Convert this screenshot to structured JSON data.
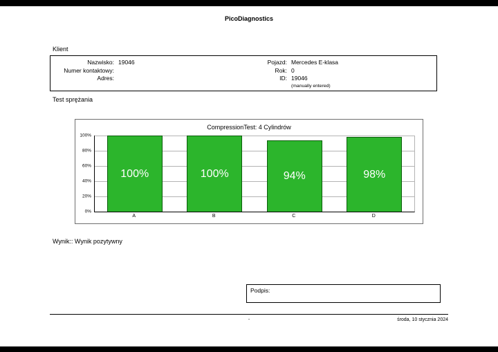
{
  "page": {
    "app_title": "PicoDiagnostics",
    "footer": {
      "center": "-",
      "date": "środa, 10 stycznia 2024"
    }
  },
  "client": {
    "section_label": "Klient",
    "fields_left": [
      {
        "label": "Nazwisko:",
        "value": "19046"
      },
      {
        "label": "Numer kontaktowy:",
        "value": ""
      },
      {
        "label": "Adres:",
        "value": ""
      }
    ],
    "fields_right": [
      {
        "label": "Pojazd:",
        "value": "Mercedes E-klasa"
      },
      {
        "label": "Rok:",
        "value": "0"
      },
      {
        "label": "ID:",
        "value": "19046"
      },
      {
        "label": "",
        "value": "(manually entered)"
      }
    ]
  },
  "test": {
    "section_label": "Test sprężania",
    "result_label": "Wynik:: Wynik pozytywny"
  },
  "signature": {
    "label": "Podpis:"
  },
  "chart_data": {
    "type": "bar",
    "title": "CompressionTest: 4 Cylindrów",
    "categories": [
      "A",
      "B",
      "C",
      "D"
    ],
    "values": [
      100,
      100,
      94,
      98
    ],
    "value_labels": [
      "100%",
      "100%",
      "94%",
      "98%"
    ],
    "ytick_labels": [
      "100%",
      "80%",
      "60%",
      "40%",
      "20%",
      "0%"
    ],
    "ylim": [
      0,
      100
    ],
    "grid": "horizontal",
    "legend": "none",
    "bar_color": "#2cb52c"
  }
}
